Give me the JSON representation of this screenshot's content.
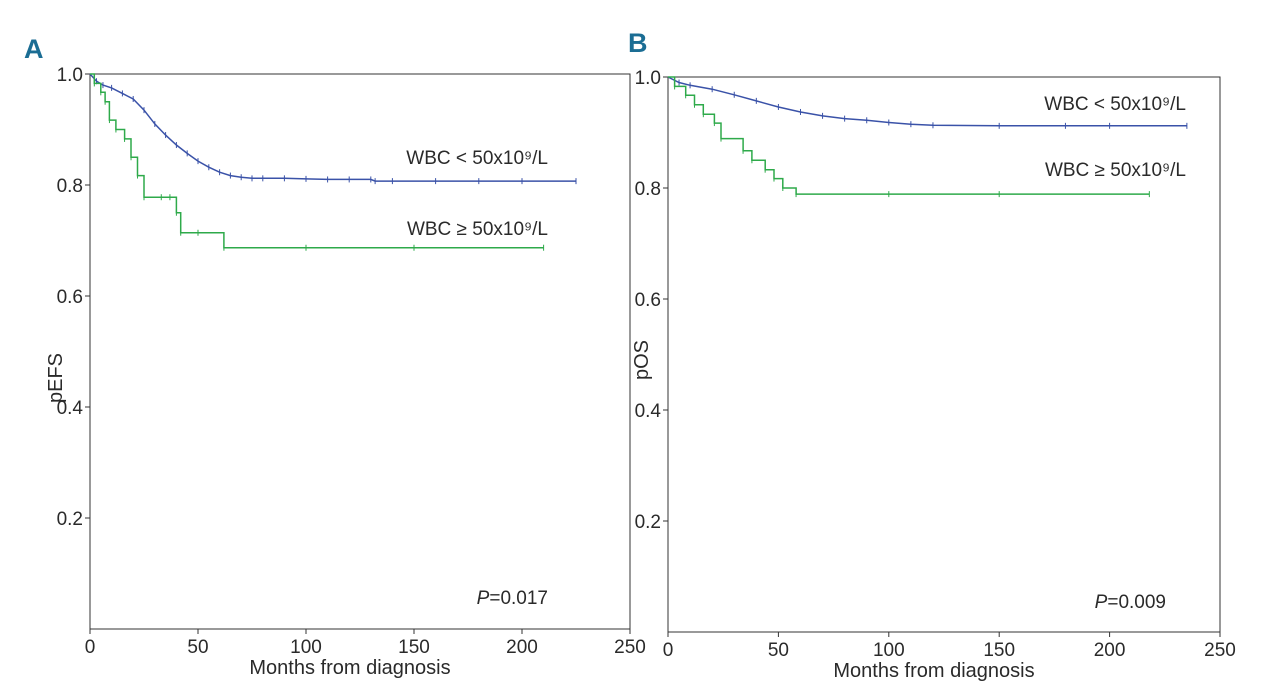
{
  "chart_data": [
    {
      "panel": "A",
      "type": "line",
      "xlabel": "Months from diagnosis",
      "ylabel": "pEFS",
      "xlim": [
        0,
        250
      ],
      "ylim": [
        0,
        1.0
      ],
      "x_ticks": [
        "0",
        "50",
        "100",
        "150",
        "200",
        "250"
      ],
      "y_ticks": [
        "0.2",
        "0.4",
        "0.6",
        "0.8",
        "1.0"
      ],
      "grid": false,
      "annotation": {
        "p_symbol": "P",
        "p_value": "=0.017"
      },
      "series": [
        {
          "name": "WBC < 50x10⁹/L",
          "color": "#3a52a8",
          "step": false,
          "x": [
            0,
            3,
            6,
            10,
            15,
            20,
            25,
            30,
            35,
            40,
            45,
            50,
            55,
            60,
            65,
            70,
            75,
            80,
            90,
            100,
            110,
            120,
            130,
            132,
            140,
            160,
            180,
            200,
            225
          ],
          "y": [
            1.0,
            0.987,
            0.98,
            0.975,
            0.965,
            0.955,
            0.935,
            0.91,
            0.89,
            0.872,
            0.857,
            0.843,
            0.832,
            0.823,
            0.817,
            0.814,
            0.812,
            0.812,
            0.812,
            0.811,
            0.81,
            0.81,
            0.81,
            0.807,
            0.807,
            0.807,
            0.807,
            0.807,
            0.807
          ]
        },
        {
          "name": "WBC ≥ 50x10⁹/L",
          "color": "#2eaa4a",
          "step": true,
          "x": [
            0,
            2,
            5,
            7,
            9,
            12,
            16,
            19,
            22,
            25,
            33,
            37,
            40,
            42,
            50,
            62,
            100,
            150,
            210
          ],
          "y": [
            1.0,
            0.983,
            0.967,
            0.95,
            0.917,
            0.9,
            0.883,
            0.85,
            0.817,
            0.778,
            0.778,
            0.778,
            0.75,
            0.714,
            0.714,
            0.687,
            0.687,
            0.687,
            0.687
          ]
        }
      ]
    },
    {
      "panel": "B",
      "type": "line",
      "xlabel": "Months from diagnosis",
      "ylabel": "pOS",
      "xlim": [
        0,
        250
      ],
      "ylim": [
        0,
        1.0
      ],
      "x_ticks": [
        "0",
        "50",
        "100",
        "150",
        "200",
        "250"
      ],
      "y_ticks": [
        "0.2",
        "0.4",
        "0.6",
        "0.8",
        "1.0"
      ],
      "grid": false,
      "annotation": {
        "p_symbol": "P",
        "p_value": "=0.009"
      },
      "series": [
        {
          "name": "WBC < 50x10⁹/L",
          "color": "#3a52a8",
          "step": false,
          "x": [
            0,
            5,
            10,
            20,
            30,
            40,
            50,
            60,
            70,
            80,
            90,
            100,
            110,
            120,
            150,
            180,
            200,
            235
          ],
          "y": [
            1.0,
            0.99,
            0.985,
            0.978,
            0.968,
            0.957,
            0.946,
            0.937,
            0.93,
            0.925,
            0.922,
            0.918,
            0.915,
            0.913,
            0.912,
            0.912,
            0.912,
            0.912
          ]
        },
        {
          "name": "WBC ≥ 50x10⁹/L",
          "color": "#2eaa4a",
          "step": true,
          "x": [
            0,
            3,
            8,
            12,
            16,
            21,
            24,
            34,
            38,
            44,
            48,
            52,
            58,
            100,
            150,
            218
          ],
          "y": [
            1.0,
            0.983,
            0.967,
            0.95,
            0.933,
            0.917,
            0.889,
            0.867,
            0.85,
            0.833,
            0.817,
            0.8,
            0.789,
            0.789,
            0.789,
            0.789
          ]
        }
      ]
    }
  ]
}
